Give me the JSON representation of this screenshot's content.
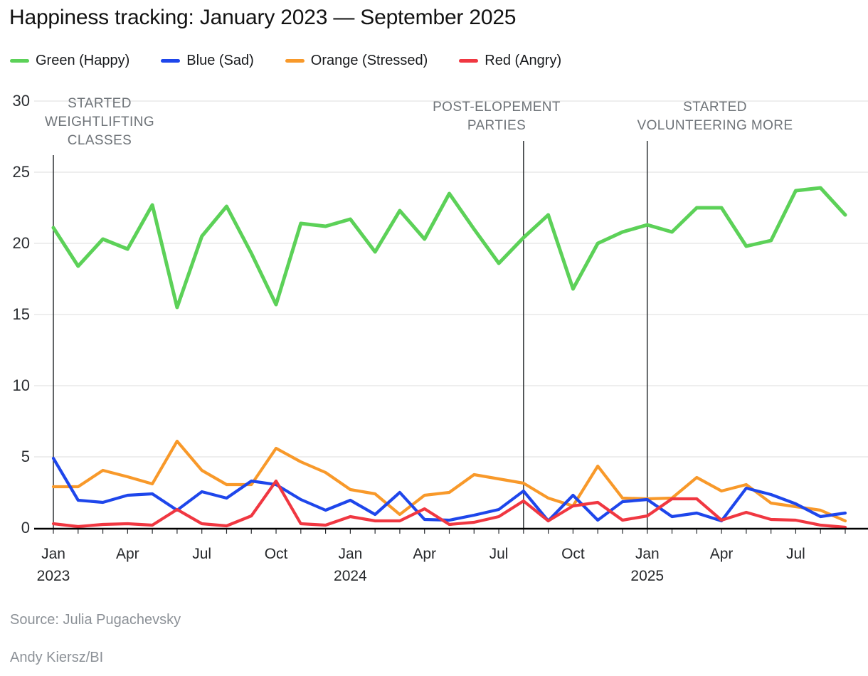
{
  "title": "Happiness tracking: January 2023 — September 2025",
  "legend": [
    {
      "label": "Green (Happy)",
      "color": "#5CD158"
    },
    {
      "label": "Blue (Sad)",
      "color": "#1E46EB"
    },
    {
      "label": "Orange (Stressed)",
      "color": "#F8992A"
    },
    {
      "label": "Red (Angry)",
      "color": "#F03741"
    }
  ],
  "annotations": [
    {
      "l1": "STARTED",
      "l2": "WEIGHTLIFTING",
      "l3": "CLASSES",
      "month_index": 0
    },
    {
      "l1": "POST-ELOPEMENT",
      "l2": "PARTIES",
      "l3": null,
      "month_index": 19
    },
    {
      "l1": "STARTED",
      "l2": "VOLUNTEERING MORE",
      "l3": null,
      "month_index": 24
    }
  ],
  "source_line1": "Source: Julia Pugachevsky",
  "source_line2": "Andy Kiersz/BI",
  "chart_data": {
    "type": "line",
    "title": "Happiness tracking: January 2023 — September 2025",
    "x_unit": "month",
    "categories": [
      "Jan 2023",
      "Feb 2023",
      "Mar 2023",
      "Apr 2023",
      "May 2023",
      "Jun 2023",
      "Jul 2023",
      "Aug 2023",
      "Sep 2023",
      "Oct 2023",
      "Nov 2023",
      "Dec 2023",
      "Jan 2024",
      "Feb 2024",
      "Mar 2024",
      "Apr 2024",
      "May 2024",
      "Jun 2024",
      "Jul 2024",
      "Aug 2024",
      "Sep 2024",
      "Oct 2024",
      "Nov 2024",
      "Dec 2024",
      "Jan 2025",
      "Feb 2025",
      "Mar 2025",
      "Apr 2025",
      "May 2025",
      "Jun 2025",
      "Jul 2025",
      "Aug 2025",
      "Sep 2025"
    ],
    "series": [
      {
        "name": "Green (Happy)",
        "color": "#5CD158",
        "values": [
          21.1,
          18.4,
          20.3,
          19.6,
          22.7,
          15.5,
          20.5,
          22.6,
          19.3,
          15.7,
          21.4,
          21.2,
          21.7,
          19.4,
          22.3,
          20.3,
          23.5,
          21.0,
          18.6,
          20.4,
          22.0,
          16.8,
          20.0,
          20.8,
          21.3,
          20.8,
          22.5,
          22.5,
          19.8,
          20.2,
          23.7,
          23.9,
          22.0
        ]
      },
      {
        "name": "Blue (Sad)",
        "color": "#1E46EB",
        "values": [
          4.9,
          1.95,
          1.8,
          2.3,
          2.4,
          1.25,
          2.55,
          2.1,
          3.3,
          3.05,
          2.0,
          1.25,
          1.95,
          0.95,
          2.5,
          0.6,
          0.55,
          0.9,
          1.3,
          2.6,
          0.5,
          2.3,
          0.55,
          1.85,
          2.0,
          0.8,
          1.05,
          0.5,
          2.8,
          2.35,
          1.7,
          0.8,
          1.05
        ]
      },
      {
        "name": "Orange (Stressed)",
        "color": "#F8992A",
        "values": [
          2.9,
          2.9,
          4.05,
          3.6,
          3.1,
          6.1,
          4.05,
          3.05,
          3.05,
          5.6,
          4.65,
          3.9,
          2.7,
          2.4,
          0.95,
          2.3,
          2.5,
          3.75,
          3.45,
          3.15,
          2.1,
          1.55,
          4.35,
          2.1,
          2.05,
          2.1,
          3.55,
          2.6,
          3.05,
          1.75,
          1.5,
          1.25,
          0.5
        ]
      },
      {
        "name": "Red (Angry)",
        "color": "#F03741",
        "values": [
          0.3,
          0.1,
          0.25,
          0.3,
          0.2,
          1.3,
          0.3,
          0.15,
          0.85,
          3.3,
          0.3,
          0.2,
          0.8,
          0.5,
          0.5,
          1.35,
          0.25,
          0.4,
          0.8,
          1.9,
          0.5,
          1.55,
          1.8,
          0.55,
          0.85,
          2.05,
          2.05,
          0.55,
          1.1,
          0.6,
          0.55,
          0.2,
          0.05
        ]
      }
    ],
    "y_ticks": [
      0,
      5,
      10,
      15,
      20,
      25,
      30
    ],
    "ylim": [
      0,
      30
    ],
    "grid": true,
    "legend_position": "top",
    "x_tick_labels": [
      {
        "label": "Jan",
        "year": "2023",
        "month_index": 0
      },
      {
        "label": "Apr",
        "year": null,
        "month_index": 3
      },
      {
        "label": "Jul",
        "year": null,
        "month_index": 6
      },
      {
        "label": "Oct",
        "year": null,
        "month_index": 9
      },
      {
        "label": "Jan",
        "year": "2024",
        "month_index": 12
      },
      {
        "label": "Apr",
        "year": null,
        "month_index": 15
      },
      {
        "label": "Jul",
        "year": null,
        "month_index": 18
      },
      {
        "label": "Oct",
        "year": null,
        "month_index": 21
      },
      {
        "label": "Jan",
        "year": "2025",
        "month_index": 24
      },
      {
        "label": "Apr",
        "year": null,
        "month_index": 27
      },
      {
        "label": "Jul",
        "year": null,
        "month_index": 30
      }
    ]
  }
}
